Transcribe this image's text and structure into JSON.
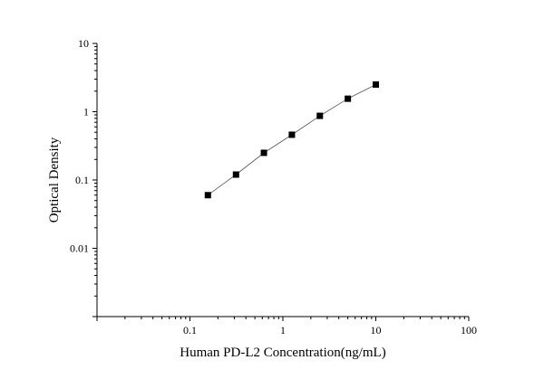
{
  "chart_data": {
    "type": "scatter",
    "xlabel": "Human PD-L2 Concentration(ng/mL)",
    "ylabel": "Optical Density",
    "xscale": "log",
    "yscale": "log",
    "xlim": [
      0.01,
      100
    ],
    "ylim": [
      0.001,
      10
    ],
    "x_tick_labels": [
      "0.1",
      "1",
      "10",
      "100"
    ],
    "y_tick_labels": [
      "0.01",
      "0.1",
      "1",
      "10"
    ],
    "grid": false,
    "marker": "square",
    "fit_line": true,
    "series": [
      {
        "x": [
          0.156,
          0.313,
          0.625,
          1.25,
          2.5,
          5,
          10
        ],
        "y": [
          0.06,
          0.12,
          0.25,
          0.46,
          0.87,
          1.55,
          2.5
        ]
      }
    ],
    "colors": {
      "marker": "#000000",
      "line": "#555555",
      "axis": "#000000"
    }
  }
}
